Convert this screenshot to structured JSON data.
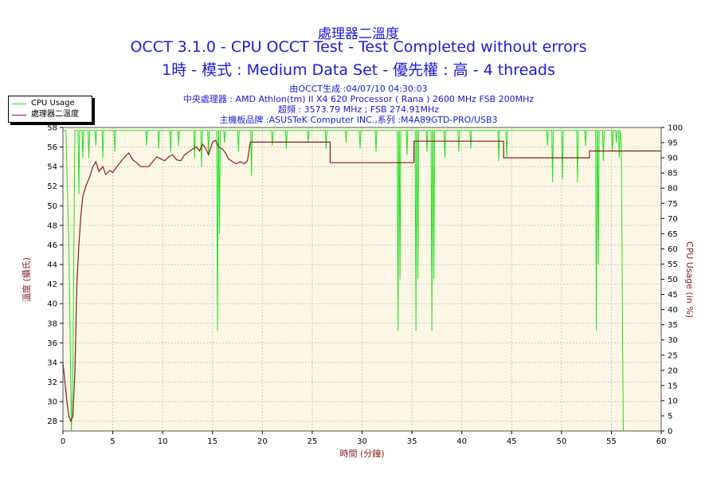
{
  "header": {
    "title": "處理器二溫度",
    "subtitle": "OCCT 3.1.0 - CPU OCCT Test - Test Completed without errors",
    "subtitle2": "1時 - 模式 : Medium Data Set - 優先權 : 高 - 4 threads",
    "info_lines": [
      "由OCCT生成 :04/07/10 04:30:03",
      "中央處理器 : AMD Athlon(tm) II X4 620 Processor ( Rana ) 2600 MHz FSB 200MHz",
      "超頻 : 3573.79 MHz ; FSB 274.91MHz",
      "主機板品牌 :ASUSTeK Computer INC.,系列 :M4A89GTD-PRO/USB3"
    ]
  },
  "colors": {
    "temperature": "#8b1a1a",
    "cpu_usage": "#22dd22",
    "plot_bg": "#fdf8e6",
    "grid": "#c8c8c8",
    "text": "#1a1adc"
  },
  "chart_data": {
    "type": "line",
    "xlabel": "時間 (分鐘)",
    "ylabel_left": "溫度 (攝氏)",
    "ylabel_right": "CPU Usage (in %)",
    "xlim": [
      0,
      60
    ],
    "ylim_left": [
      27,
      58
    ],
    "ylim_right": [
      0,
      100
    ],
    "x_ticks": [
      0,
      5,
      10,
      15,
      20,
      25,
      30,
      35,
      40,
      45,
      50,
      55,
      60
    ],
    "y_left_ticks": [
      28,
      30,
      32,
      34,
      36,
      38,
      40,
      42,
      44,
      46,
      48,
      50,
      52,
      54,
      56,
      58
    ],
    "y_right_ticks": [
      0,
      5,
      10,
      15,
      20,
      25,
      30,
      35,
      40,
      45,
      50,
      55,
      60,
      65,
      70,
      75,
      80,
      85,
      90,
      95,
      100
    ],
    "grid": true,
    "legend_position": "top-left",
    "series": [
      {
        "name": "CPU Usage",
        "axis": "right",
        "baseline": 99,
        "start_points": [
          [
            0,
            99
          ],
          [
            0.3,
            99
          ],
          [
            0.6,
            60
          ],
          [
            0.85,
            0
          ],
          [
            1.0,
            20
          ],
          [
            1.2,
            99
          ]
        ],
        "dips": [
          [
            1.6,
            78
          ],
          [
            2.0,
            90
          ],
          [
            2.6,
            90
          ],
          [
            3.3,
            94
          ],
          [
            4.0,
            90
          ],
          [
            5.2,
            92
          ],
          [
            8.4,
            94
          ],
          [
            9.6,
            93
          ],
          [
            10.8,
            92
          ],
          [
            11.6,
            94
          ],
          [
            13.2,
            90
          ],
          [
            13.9,
            87
          ],
          [
            14.6,
            91
          ],
          [
            15.5,
            33
          ],
          [
            15.7,
            65
          ],
          [
            16.2,
            95
          ],
          [
            17.6,
            92
          ],
          [
            18.9,
            84
          ],
          [
            21.0,
            94
          ],
          [
            22.4,
            93
          ],
          [
            24.6,
            95
          ],
          [
            26.4,
            93
          ],
          [
            28.4,
            95
          ],
          [
            29.8,
            93
          ],
          [
            31.4,
            92
          ],
          [
            33.6,
            33
          ],
          [
            33.8,
            50
          ],
          [
            34.5,
            91
          ],
          [
            35.4,
            33
          ],
          [
            35.6,
            50
          ],
          [
            36.5,
            92
          ],
          [
            37.0,
            33
          ],
          [
            37.2,
            50
          ],
          [
            38.3,
            90
          ],
          [
            39.7,
            92
          ],
          [
            40.9,
            93
          ],
          [
            43.7,
            89
          ],
          [
            44.5,
            90
          ],
          [
            48.6,
            94
          ],
          [
            49.1,
            82
          ],
          [
            50.1,
            83
          ],
          [
            51.6,
            82
          ],
          [
            52.4,
            94
          ],
          [
            53.5,
            33
          ],
          [
            53.7,
            55
          ],
          [
            54.2,
            89
          ],
          [
            55.1,
            92
          ],
          [
            55.5,
            95
          ],
          [
            55.8,
            90
          ]
        ],
        "end_points": [
          [
            56.0,
            95
          ],
          [
            56.2,
            0
          ]
        ]
      },
      {
        "name": "處理器二溫度",
        "axis": "left",
        "points": [
          [
            0,
            34
          ],
          [
            0.2,
            32
          ],
          [
            0.4,
            30
          ],
          [
            0.6,
            28.5
          ],
          [
            0.8,
            28
          ],
          [
            1.0,
            28.5
          ],
          [
            1.2,
            33
          ],
          [
            1.4,
            42
          ],
          [
            1.6,
            46
          ],
          [
            1.8,
            49
          ],
          [
            2.0,
            51
          ],
          [
            2.3,
            52
          ],
          [
            2.7,
            53
          ],
          [
            3.0,
            54
          ],
          [
            3.3,
            54.5
          ],
          [
            3.6,
            53.5
          ],
          [
            4.0,
            54
          ],
          [
            4.3,
            53.2
          ],
          [
            4.7,
            53.6
          ],
          [
            5.0,
            53.4
          ],
          [
            5.4,
            54
          ],
          [
            5.8,
            54.5
          ],
          [
            6.2,
            55
          ],
          [
            6.6,
            55.4
          ],
          [
            7.0,
            54.7
          ],
          [
            7.4,
            54.4
          ],
          [
            7.8,
            54
          ],
          [
            8.2,
            54
          ],
          [
            8.6,
            54
          ],
          [
            9.0,
            54.5
          ],
          [
            9.4,
            55
          ],
          [
            9.8,
            54.8
          ],
          [
            10.2,
            54.6
          ],
          [
            10.6,
            55
          ],
          [
            11.0,
            55.2
          ],
          [
            11.4,
            54.7
          ],
          [
            11.8,
            54.6
          ],
          [
            12.2,
            55.2
          ],
          [
            12.6,
            55.5
          ],
          [
            13.0,
            55.8
          ],
          [
            13.4,
            56
          ],
          [
            13.7,
            55.6
          ],
          [
            14.0,
            56.3
          ],
          [
            14.3,
            55.9
          ],
          [
            14.6,
            55.2
          ],
          [
            15.0,
            56.5
          ],
          [
            15.3,
            56.7
          ],
          [
            15.6,
            56
          ],
          [
            16.0,
            55.8
          ],
          [
            16.3,
            55.4
          ],
          [
            16.6,
            54.8
          ],
          [
            17.0,
            54.5
          ],
          [
            17.4,
            54.3
          ],
          [
            17.8,
            54.5
          ],
          [
            18.2,
            54.3
          ],
          [
            18.5,
            54.6
          ],
          [
            18.8,
            56.5
          ],
          [
            22.0,
            56.5
          ],
          [
            26.8,
            56.5
          ],
          [
            26.8,
            54.4
          ],
          [
            35.2,
            54.4
          ],
          [
            35.2,
            56.6
          ],
          [
            44.2,
            56.6
          ],
          [
            44.2,
            54.9
          ],
          [
            52.8,
            54.9
          ],
          [
            52.8,
            55.6
          ],
          [
            60,
            55.6
          ]
        ]
      }
    ]
  }
}
